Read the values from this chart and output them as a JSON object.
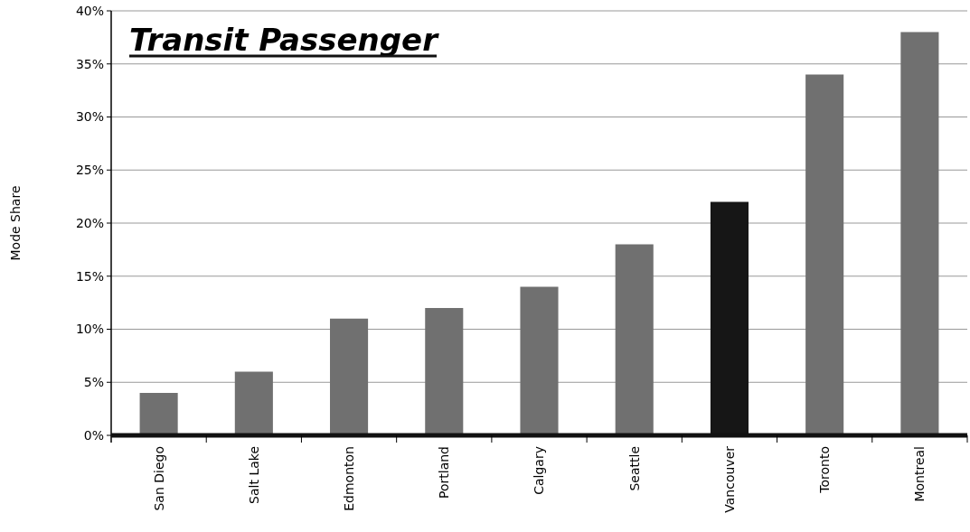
{
  "chart_data": {
    "type": "bar",
    "title": "Transit Passenger",
    "ylabel": "Mode Share",
    "categories": [
      "San Diego",
      "Salt Lake",
      "Edmonton",
      "Portland",
      "Calgary",
      "Seattle",
      "Vancouver",
      "Toronto",
      "Montreal"
    ],
    "values": [
      4,
      6,
      11,
      12,
      14,
      18,
      22,
      34,
      38
    ],
    "colors": [
      "#707070",
      "#707070",
      "#707070",
      "#707070",
      "#707070",
      "#707070",
      "#161616",
      "#707070",
      "#707070"
    ],
    "ylim": [
      0,
      40
    ],
    "yticks": [
      {
        "value": 0,
        "label": "0%"
      },
      {
        "value": 5,
        "label": "5%"
      },
      {
        "value": 10,
        "label": "10%"
      },
      {
        "value": 15,
        "label": "15%"
      },
      {
        "value": 20,
        "label": "20%"
      },
      {
        "value": 25,
        "label": "25%"
      },
      {
        "value": 30,
        "label": "30%"
      },
      {
        "value": 35,
        "label": "35%"
      },
      {
        "value": 40,
        "label": "40%"
      }
    ],
    "grid": "y"
  }
}
